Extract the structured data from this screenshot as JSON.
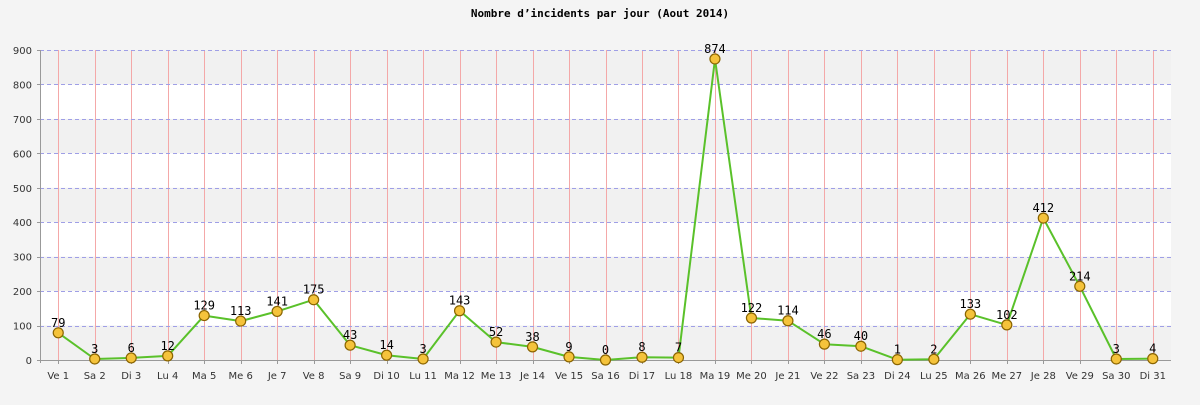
{
  "chart_data": {
    "type": "line",
    "title": "Nombre d’incidents par jour (Aout 2014)",
    "xlabel": "",
    "ylabel": "",
    "ylim": [
      0,
      900
    ],
    "yticks": [
      0,
      100,
      200,
      300,
      400,
      500,
      600,
      700,
      800,
      900
    ],
    "categories": [
      "Ve 1",
      "Sa 2",
      "Di 3",
      "Lu 4",
      "Ma 5",
      "Me 6",
      "Je 7",
      "Ve 8",
      "Sa 9",
      "Di 10",
      "Lu 11",
      "Ma 12",
      "Me 13",
      "Je 14",
      "Ve 15",
      "Sa 16",
      "Di 17",
      "Lu 18",
      "Ma 19",
      "Me 20",
      "Je 21",
      "Ve 22",
      "Sa 23",
      "Di 24",
      "Lu 25",
      "Ma 26",
      "Me 27",
      "Je 28",
      "Ve 29",
      "Sa 30",
      "Di 31"
    ],
    "values": [
      79,
      3,
      6,
      12,
      129,
      113,
      141,
      175,
      43,
      14,
      3,
      143,
      52,
      38,
      9,
      0,
      8,
      7,
      874,
      122,
      114,
      46,
      40,
      1,
      2,
      133,
      102,
      412,
      214,
      3,
      4
    ],
    "grid": true,
    "legend": "none",
    "colors": {
      "line": "#5ac12a",
      "marker_fill": "#f5c33b",
      "marker_stroke": "#8a6400",
      "vgrid": "#f4a8a8",
      "hgrid": "#9f9fe6",
      "band_light": "#ffffff",
      "band_dark": "#f1f1f1",
      "background": "#f4f4f4"
    }
  }
}
